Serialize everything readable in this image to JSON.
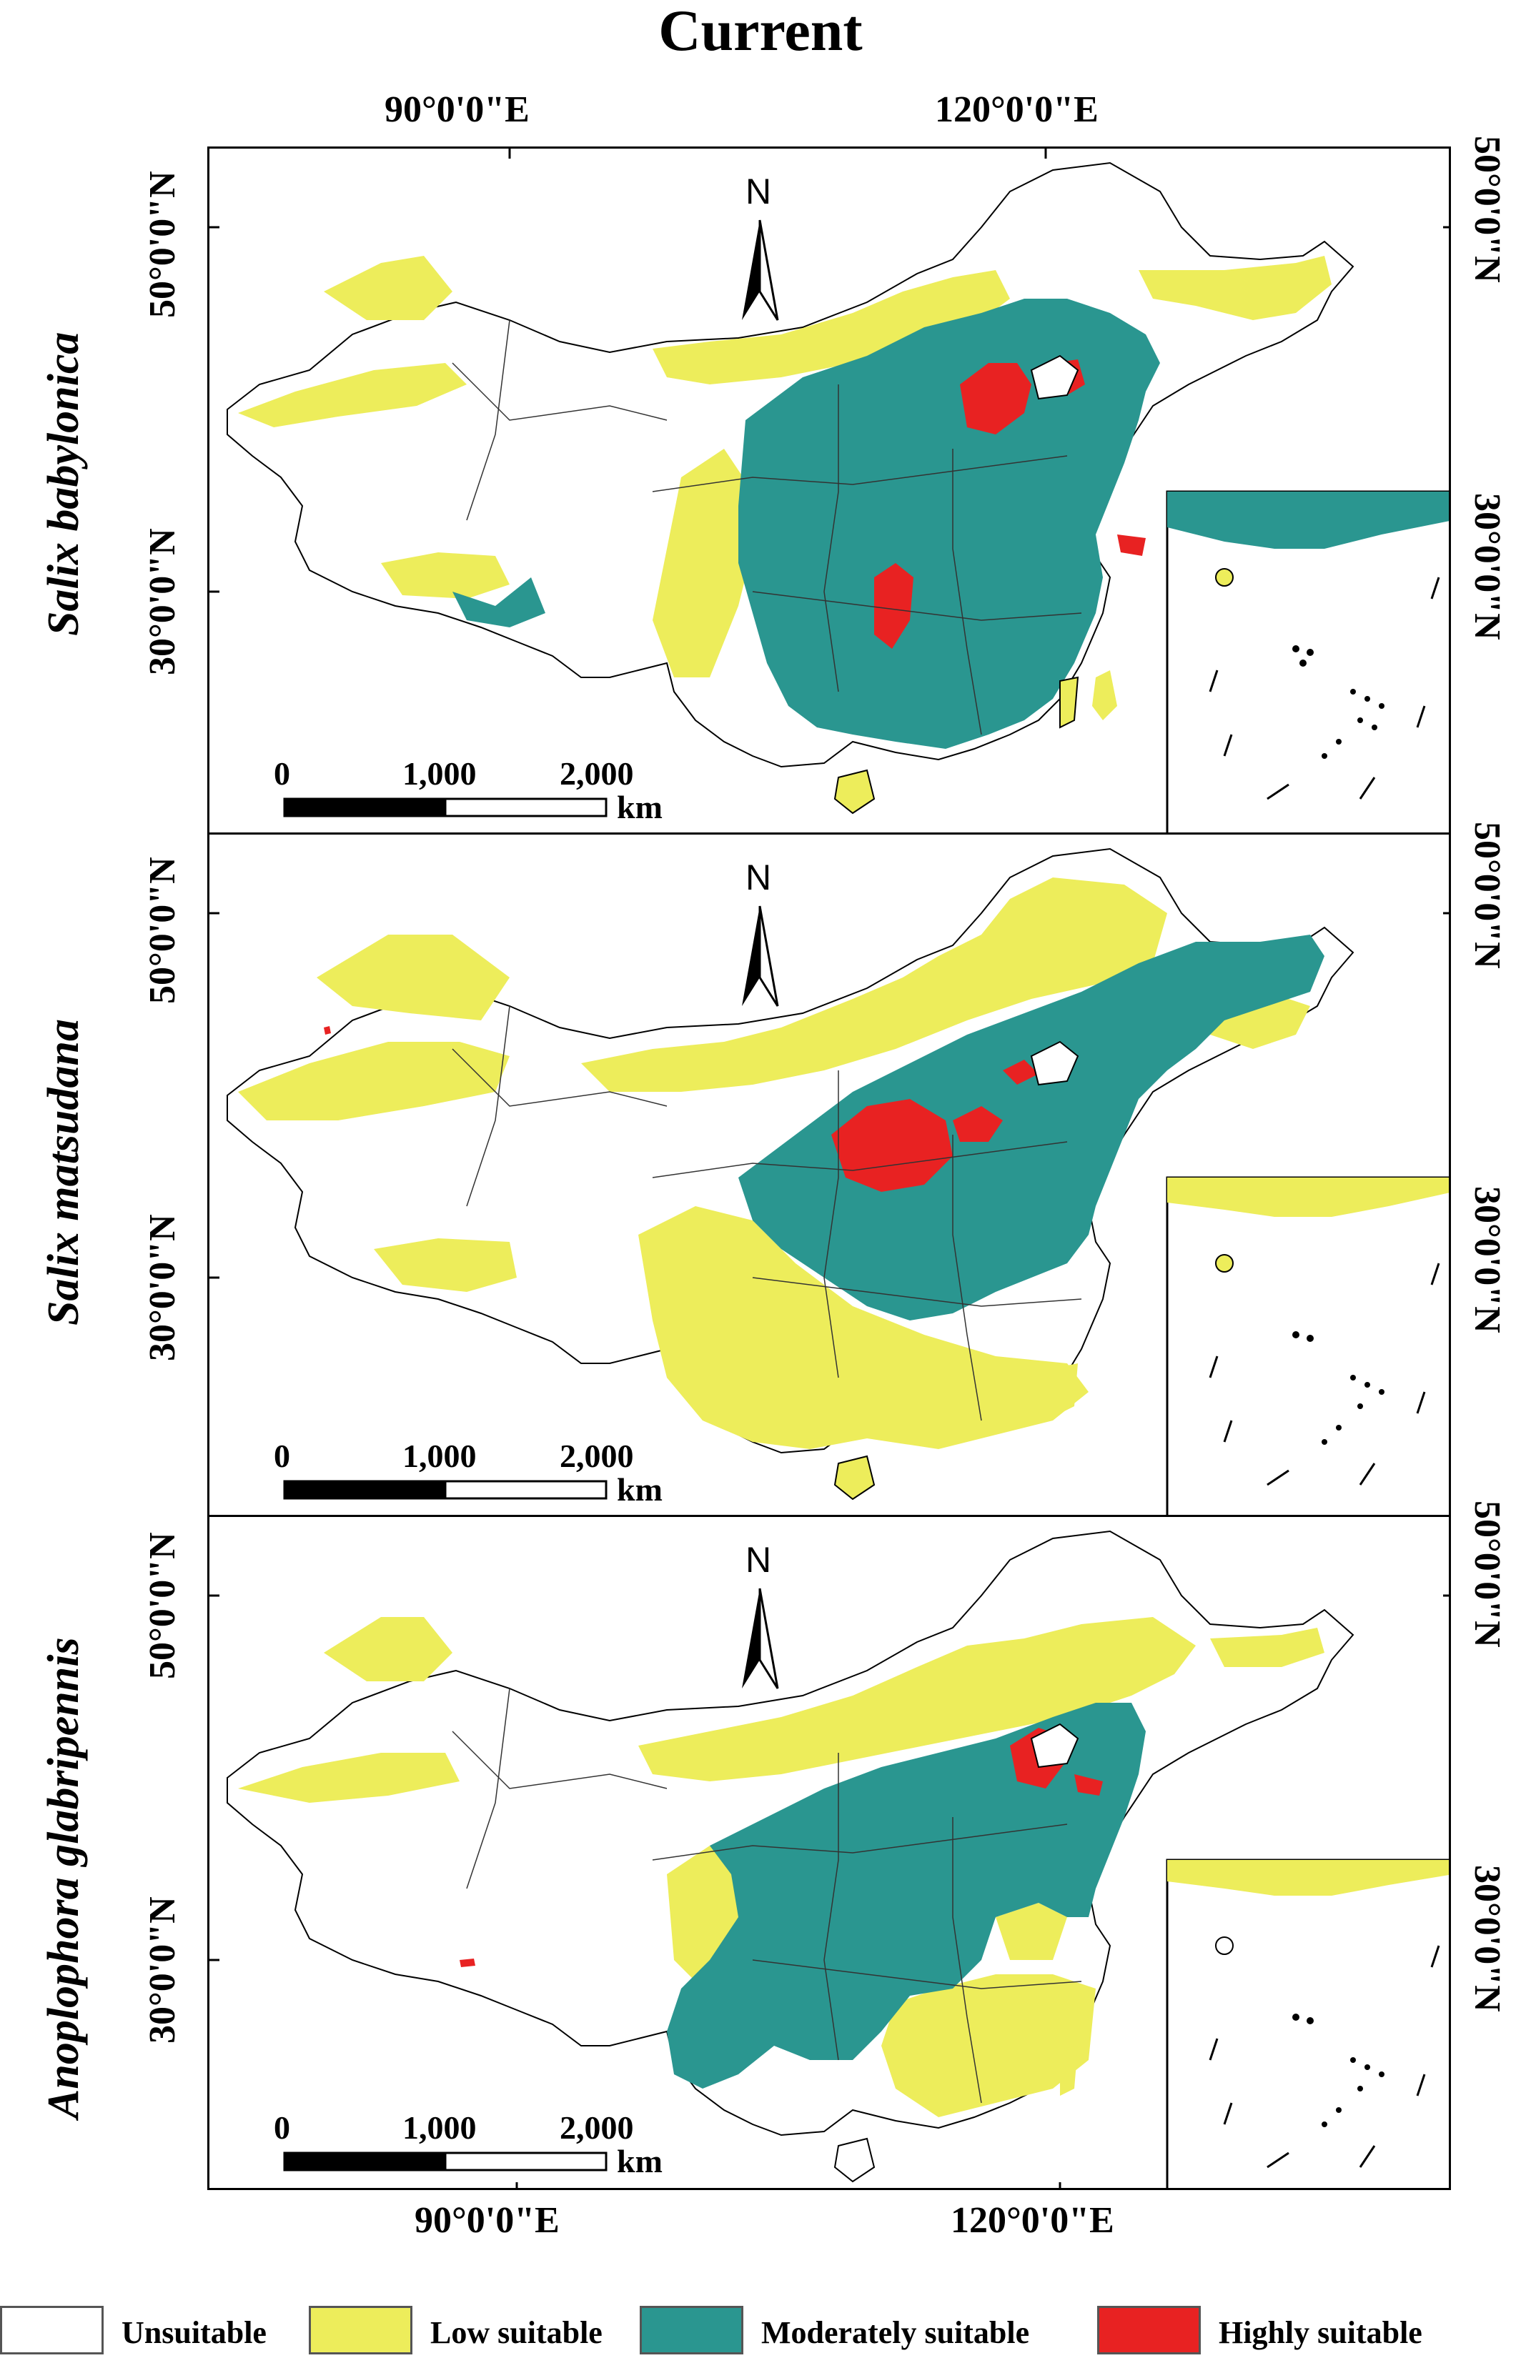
{
  "title": "Current",
  "longitude_labels": [
    "90°0'0\"E",
    "120°0'0\"E"
  ],
  "latitude_labels": [
    "50°0'0\"N",
    "30°0'0\"N"
  ],
  "north_arrow": {
    "letter": "N",
    "icon": "north-arrow-icon"
  },
  "scale_bar": {
    "ticks": [
      "0",
      "1,000",
      "2,000"
    ],
    "unit": "km"
  },
  "panels": [
    {
      "species": "Salix babylonica"
    },
    {
      "species": "Salix matsudana"
    },
    {
      "species": "Anoplophora glabripennis"
    }
  ],
  "legend": [
    {
      "label": "Unsuitable",
      "color": "#ffffff"
    },
    {
      "label": "Low suitable",
      "color": "#eded5b"
    },
    {
      "label": "Moderately suitable",
      "color": "#2a9690"
    },
    {
      "label": "Highly suitable",
      "color": "#e82222"
    }
  ]
}
